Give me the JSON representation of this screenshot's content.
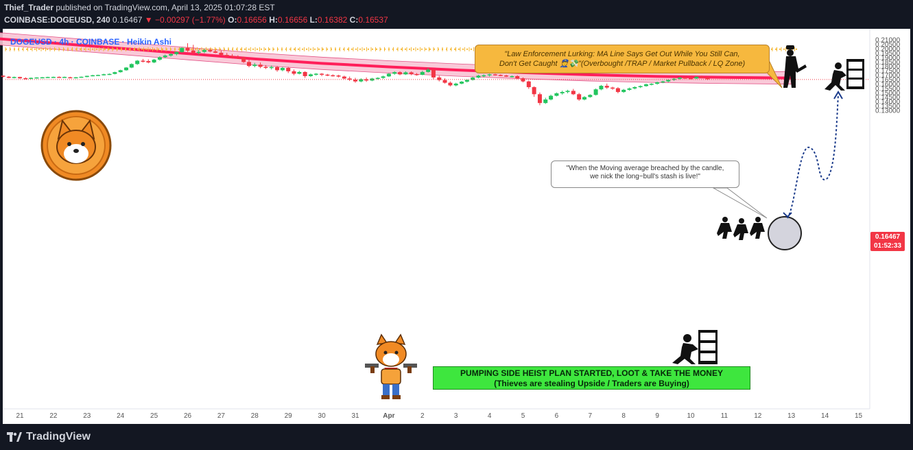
{
  "header": {
    "author": "Thief_Trader",
    "published": "published on TradingView.com, April 13, 2025 01:07:28 EST",
    "symbol": "COINBASE:DOGEUSD, 240",
    "last": "0.16467",
    "arrow": "▼",
    "change": "−0.00297 (−1.77%)",
    "o_label": "O:",
    "o_val": "0.16656",
    "h_label": "H:",
    "h_val": "0.16656",
    "l_label": "L:",
    "l_val": "0.16382",
    "c_label": "C:",
    "c_val": "0.16537"
  },
  "chart_title": "DOGEUSD · 4h · COINBASE · Heikin Ashi",
  "callouts": {
    "top_line1": "\"Law Enforcement Lurking: MA Line Says Get Out While You Still Can,",
    "top_line2": "Don't Get Caught 👮💸\"(Overbought /TRAP / Market Pullback / LQ Zone)",
    "note_line1": "\"When the Moving average breached by the candle,",
    "note_line2": "we nick the long−bull's stash is live!\"",
    "plan_line1": "PUMPING SIDE HEIST PLAN STARTED, LOOT & TAKE THE MONEY",
    "plan_line2": "(Thieves are stealing Upside / Traders are Buying)"
  },
  "price_tag": {
    "price": "0.16467",
    "countdown": "01:52:33"
  },
  "footer": {
    "brand": "TradingView"
  },
  "colors": {
    "up": "#22c55e",
    "down": "#f23645",
    "ma": "#ff1f5a",
    "ma_band": "#f9c4d4",
    "target": "#f5b731",
    "background": "#ffffff",
    "dark": "#131722"
  },
  "chart_data": {
    "type": "candlestick",
    "style": "heikin_ashi",
    "ylim": [
      0.125,
      0.215
    ],
    "y_ticks": [
      "0.21000",
      "0.20500",
      "0.20000",
      "0.19500",
      "0.19000",
      "0.18500",
      "0.18000",
      "0.17500",
      "0.17000",
      "0.16500",
      "0.16000",
      "0.15500",
      "0.15000",
      "0.14500",
      "0.14000",
      "0.13500",
      "0.13000"
    ],
    "x_ticks": [
      "21",
      "22",
      "23",
      "24",
      "25",
      "26",
      "27",
      "28",
      "29",
      "30",
      "31",
      "Apr",
      "2",
      "3",
      "4",
      "5",
      "6",
      "7",
      "8",
      "9",
      "10",
      "11",
      "12",
      "13",
      "14",
      "15"
    ],
    "current_price": 0.16467,
    "target_level": 0.199,
    "moving_average": [
      [
        20.0,
        0.212
      ],
      [
        22,
        0.206
      ],
      [
        24,
        0.2
      ],
      [
        26,
        0.194
      ],
      [
        28,
        0.188
      ],
      [
        30,
        0.183
      ],
      [
        32,
        0.179
      ],
      [
        34,
        0.1755
      ],
      [
        36,
        0.1725
      ],
      [
        38,
        0.17
      ],
      [
        40,
        0.1682
      ],
      [
        42,
        0.1671
      ],
      [
        44,
        0.1664
      ]
    ],
    "candles": [
      [
        20.0,
        0.1715,
        0.172,
        0.1695,
        0.17
      ],
      [
        20.17,
        0.17,
        0.1705,
        0.1668,
        0.1675
      ],
      [
        20.33,
        0.168,
        0.17,
        0.167,
        0.1695
      ],
      [
        20.5,
        0.169,
        0.1693,
        0.167,
        0.1678
      ],
      [
        20.67,
        0.1678,
        0.1685,
        0.166,
        0.1665
      ],
      [
        20.83,
        0.1668,
        0.168,
        0.166,
        0.1675
      ],
      [
        21.0,
        0.1675,
        0.1678,
        0.1655,
        0.166
      ],
      [
        21.17,
        0.1662,
        0.1672,
        0.1648,
        0.1655
      ],
      [
        21.33,
        0.1655,
        0.167,
        0.165,
        0.1665
      ],
      [
        21.5,
        0.1665,
        0.1672,
        0.166,
        0.167
      ],
      [
        21.67,
        0.1668,
        0.1675,
        0.1662,
        0.1672
      ],
      [
        21.83,
        0.167,
        0.1678,
        0.1665,
        0.1675
      ],
      [
        22.0,
        0.1672,
        0.168,
        0.1665,
        0.1676
      ],
      [
        22.17,
        0.1676,
        0.1682,
        0.1668,
        0.1672
      ],
      [
        22.33,
        0.1672,
        0.168,
        0.1665,
        0.1676
      ],
      [
        22.5,
        0.1672,
        0.1678,
        0.1662,
        0.1668
      ],
      [
        22.67,
        0.1668,
        0.1675,
        0.166,
        0.1672
      ],
      [
        22.83,
        0.1672,
        0.168,
        0.1668,
        0.1678
      ],
      [
        23.0,
        0.1675,
        0.169,
        0.1672,
        0.1688
      ],
      [
        23.17,
        0.1688,
        0.17,
        0.1682,
        0.1695
      ],
      [
        23.33,
        0.1695,
        0.1702,
        0.1688,
        0.1698
      ],
      [
        23.5,
        0.1698,
        0.1712,
        0.1692,
        0.1706
      ],
      [
        23.67,
        0.1706,
        0.1715,
        0.1698,
        0.171
      ],
      [
        23.83,
        0.171,
        0.1735,
        0.1705,
        0.173
      ],
      [
        24.0,
        0.173,
        0.1758,
        0.1725,
        0.1752
      ],
      [
        24.17,
        0.1752,
        0.1788,
        0.1745,
        0.1782
      ],
      [
        24.33,
        0.1782,
        0.183,
        0.1775,
        0.1822
      ],
      [
        24.5,
        0.1822,
        0.1868,
        0.1812,
        0.186
      ],
      [
        24.67,
        0.186,
        0.188,
        0.184,
        0.1855
      ],
      [
        24.83,
        0.1855,
        0.1875,
        0.183,
        0.184
      ],
      [
        25.0,
        0.184,
        0.188,
        0.1832,
        0.1872
      ],
      [
        25.17,
        0.1872,
        0.191,
        0.186,
        0.19
      ],
      [
        25.33,
        0.19,
        0.193,
        0.1888,
        0.1918
      ],
      [
        25.5,
        0.1918,
        0.1945,
        0.1905,
        0.1935
      ],
      [
        25.67,
        0.1935,
        0.1965,
        0.192,
        0.1958
      ],
      [
        25.83,
        0.1958,
        0.201,
        0.195,
        0.2005
      ],
      [
        26.0,
        0.2005,
        0.2058,
        0.196,
        0.1975
      ],
      [
        26.17,
        0.1975,
        0.204,
        0.1935,
        0.195
      ],
      [
        26.33,
        0.195,
        0.1985,
        0.193,
        0.196
      ],
      [
        26.5,
        0.196,
        0.1995,
        0.1945,
        0.198
      ],
      [
        26.67,
        0.198,
        0.2,
        0.1955,
        0.1965
      ],
      [
        26.83,
        0.1965,
        0.198,
        0.1945,
        0.195
      ],
      [
        27.0,
        0.195,
        0.1975,
        0.1915,
        0.1925
      ],
      [
        27.17,
        0.1925,
        0.1948,
        0.19,
        0.191
      ],
      [
        27.33,
        0.191,
        0.1935,
        0.1885,
        0.19
      ],
      [
        27.5,
        0.19,
        0.1922,
        0.188,
        0.1895
      ],
      [
        27.67,
        0.1895,
        0.1905,
        0.1835,
        0.1845
      ],
      [
        27.83,
        0.1845,
        0.187,
        0.1785,
        0.18
      ],
      [
        28.0,
        0.18,
        0.1835,
        0.1785,
        0.1815
      ],
      [
        28.17,
        0.1815,
        0.184,
        0.1775,
        0.179
      ],
      [
        28.33,
        0.179,
        0.181,
        0.1765,
        0.178
      ],
      [
        28.5,
        0.178,
        0.1805,
        0.176,
        0.1788
      ],
      [
        28.67,
        0.1788,
        0.18,
        0.1735,
        0.1752
      ],
      [
        28.83,
        0.1752,
        0.179,
        0.174,
        0.1778
      ],
      [
        29.0,
        0.1778,
        0.179,
        0.172,
        0.174
      ],
      [
        29.17,
        0.174,
        0.176,
        0.1695,
        0.1712
      ],
      [
        29.33,
        0.1712,
        0.1745,
        0.1705,
        0.1732
      ],
      [
        29.5,
        0.1732,
        0.174,
        0.1665,
        0.1685
      ],
      [
        29.67,
        0.1685,
        0.1715,
        0.1675,
        0.1705
      ],
      [
        29.83,
        0.1705,
        0.172,
        0.169,
        0.1712
      ],
      [
        30.0,
        0.1712,
        0.172,
        0.1685,
        0.1702
      ],
      [
        30.17,
        0.1702,
        0.171,
        0.1685,
        0.1695
      ],
      [
        30.33,
        0.1695,
        0.1705,
        0.168,
        0.1692
      ],
      [
        30.5,
        0.1692,
        0.17,
        0.167,
        0.168
      ],
      [
        30.67,
        0.168,
        0.169,
        0.165,
        0.1658
      ],
      [
        30.83,
        0.1658,
        0.168,
        0.163,
        0.1645
      ],
      [
        31.0,
        0.1645,
        0.1665,
        0.161,
        0.1625
      ],
      [
        31.17,
        0.1625,
        0.166,
        0.1615,
        0.165
      ],
      [
        31.33,
        0.165,
        0.167,
        0.162,
        0.1635
      ],
      [
        31.5,
        0.1635,
        0.1665,
        0.1628,
        0.1658
      ],
      [
        31.67,
        0.1658,
        0.1672,
        0.1645,
        0.1665
      ],
      [
        31.83,
        0.1665,
        0.169,
        0.1655,
        0.1682
      ],
      [
        32.0,
        0.1682,
        0.172,
        0.1675,
        0.1712
      ],
      [
        32.17,
        0.1712,
        0.174,
        0.17,
        0.173
      ],
      [
        32.33,
        0.173,
        0.174,
        0.1695,
        0.1705
      ],
      [
        32.5,
        0.1705,
        0.174,
        0.1698,
        0.1728
      ],
      [
        32.67,
        0.1728,
        0.1738,
        0.1695,
        0.1708
      ],
      [
        32.83,
        0.1708,
        0.172,
        0.169,
        0.17
      ],
      [
        33.0,
        0.17,
        0.1745,
        0.1695,
        0.1732
      ],
      [
        33.17,
        0.1732,
        0.1775,
        0.1725,
        0.1758
      ],
      [
        33.33,
        0.1758,
        0.177,
        0.165,
        0.167
      ],
      [
        33.5,
        0.167,
        0.169,
        0.1625,
        0.164
      ],
      [
        33.67,
        0.164,
        0.166,
        0.16,
        0.161
      ],
      [
        33.83,
        0.161,
        0.1625,
        0.1568,
        0.158
      ],
      [
        34.0,
        0.158,
        0.161,
        0.157,
        0.16
      ],
      [
        34.17,
        0.16,
        0.163,
        0.1592,
        0.1622
      ],
      [
        34.33,
        0.1622,
        0.165,
        0.1612,
        0.1642
      ],
      [
        34.5,
        0.1642,
        0.168,
        0.1635,
        0.1668
      ],
      [
        34.67,
        0.1668,
        0.17,
        0.166,
        0.169
      ],
      [
        34.83,
        0.169,
        0.1705,
        0.167,
        0.1695
      ],
      [
        35.0,
        0.1695,
        0.1712,
        0.168,
        0.1705
      ],
      [
        35.17,
        0.1705,
        0.1712,
        0.169,
        0.1698
      ],
      [
        35.33,
        0.1698,
        0.1705,
        0.1685,
        0.1692
      ],
      [
        35.5,
        0.1692,
        0.17,
        0.1675,
        0.168
      ],
      [
        35.67,
        0.168,
        0.1692,
        0.167,
        0.1685
      ],
      [
        35.83,
        0.1685,
        0.1695,
        0.165,
        0.166
      ],
      [
        36.0,
        0.166,
        0.167,
        0.1615,
        0.1625
      ],
      [
        36.17,
        0.1625,
        0.1635,
        0.154,
        0.156
      ],
      [
        36.33,
        0.156,
        0.157,
        0.145,
        0.148
      ],
      [
        36.5,
        0.148,
        0.15,
        0.1355,
        0.138
      ],
      [
        36.67,
        0.138,
        0.144,
        0.137,
        0.142
      ],
      [
        36.83,
        0.142,
        0.1475,
        0.141,
        0.1462
      ],
      [
        37.0,
        0.1462,
        0.15,
        0.1455,
        0.149
      ],
      [
        37.17,
        0.149,
        0.152,
        0.1475,
        0.1505
      ],
      [
        37.33,
        0.1505,
        0.153,
        0.149,
        0.1518
      ],
      [
        37.5,
        0.1518,
        0.154,
        0.147,
        0.148
      ],
      [
        37.67,
        0.148,
        0.1495,
        0.1405,
        0.142
      ],
      [
        37.83,
        0.142,
        0.1458,
        0.141,
        0.1448
      ],
      [
        38.0,
        0.1448,
        0.148,
        0.144,
        0.1472
      ],
      [
        38.17,
        0.1472,
        0.1545,
        0.1465,
        0.1535
      ],
      [
        38.33,
        0.1535,
        0.1585,
        0.1525,
        0.1575
      ],
      [
        38.5,
        0.1575,
        0.16,
        0.154,
        0.1555
      ],
      [
        38.67,
        0.1555,
        0.1565,
        0.153,
        0.1548
      ],
      [
        38.83,
        0.1548,
        0.156,
        0.149,
        0.1505
      ],
      [
        39.0,
        0.1505,
        0.154,
        0.1495,
        0.153
      ],
      [
        39.17,
        0.153,
        0.1555,
        0.152,
        0.1545
      ],
      [
        39.33,
        0.1545,
        0.157,
        0.1535,
        0.156
      ],
      [
        39.5,
        0.156,
        0.158,
        0.155,
        0.1572
      ],
      [
        39.67,
        0.1572,
        0.16,
        0.1565,
        0.1592
      ],
      [
        39.83,
        0.1592,
        0.1605,
        0.158,
        0.1598
      ],
      [
        40.0,
        0.1598,
        0.1622,
        0.1588,
        0.1615
      ],
      [
        40.17,
        0.1615,
        0.1632,
        0.1605,
        0.1625
      ],
      [
        40.33,
        0.1625,
        0.165,
        0.1615,
        0.1642
      ],
      [
        40.5,
        0.1642,
        0.1662,
        0.1632,
        0.1655
      ],
      [
        40.67,
        0.1655,
        0.1675,
        0.1645,
        0.1668
      ],
      [
        40.83,
        0.1668,
        0.168,
        0.1655,
        0.1662
      ],
      [
        41.0,
        0.1662,
        0.1672,
        0.165,
        0.1658
      ],
      [
        41.17,
        0.1658,
        0.1685,
        0.1652,
        0.1678
      ],
      [
        41.33,
        0.1678,
        0.169,
        0.166,
        0.167
      ],
      [
        41.5,
        0.167,
        0.168,
        0.164,
        0.165
      ]
    ]
  }
}
